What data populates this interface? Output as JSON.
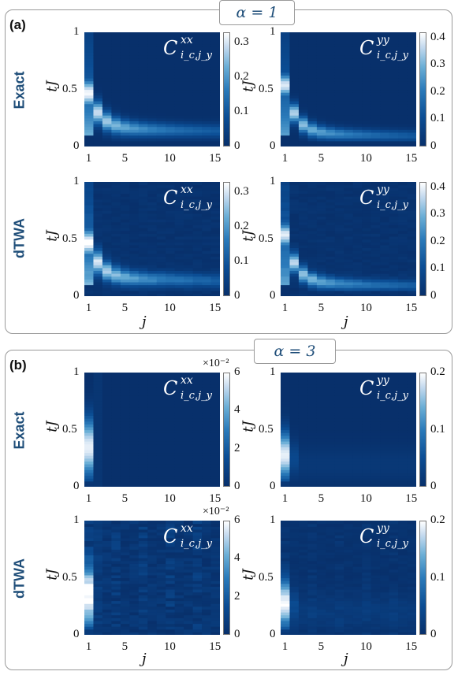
{
  "panels": [
    {
      "letter": "(a)",
      "alpha": "α = 1",
      "rows": [
        "Exact",
        "dTWA"
      ]
    },
    {
      "letter": "(b)",
      "alpha": "α = 3",
      "rows": [
        "Exact",
        "dTWA"
      ]
    }
  ],
  "axes": {
    "ylabel": "tJ",
    "xlabel": "j",
    "yticks": [
      "0",
      "0.5",
      "1"
    ],
    "xticks": [
      "1",
      "5",
      "10",
      "15"
    ]
  },
  "labels": {
    "xx_sup": "xx",
    "yy_sup": "yy",
    "sub": "i_c,j_y",
    "C": "C"
  },
  "colorbars": {
    "a_xx": {
      "ticks": [
        "0",
        "0.1",
        "0.2",
        "0.3"
      ]
    },
    "a_yy": {
      "ticks": [
        "0",
        "0.1",
        "0.2",
        "0.3",
        "0.4"
      ]
    },
    "b_xx": {
      "ticks": [
        "0",
        "2",
        "4",
        "6"
      ],
      "exponent": "×10⁻²"
    },
    "b_yy": {
      "ticks": [
        "0",
        "0.1",
        "0.2"
      ]
    }
  },
  "colors": {
    "low": "#08306b",
    "high": "#ffffff",
    "accent": "#1f4e79"
  },
  "chart_data": [
    {
      "type": "heatmap",
      "panel": "a",
      "method": "Exact",
      "quantity": "C^xx",
      "x_range": [
        1,
        15
      ],
      "y_range": [
        0,
        1
      ],
      "clim": [
        0,
        0.33
      ]
    },
    {
      "type": "heatmap",
      "panel": "a",
      "method": "Exact",
      "quantity": "C^yy",
      "x_range": [
        1,
        15
      ],
      "y_range": [
        0,
        1
      ],
      "clim": [
        0,
        0.42
      ]
    },
    {
      "type": "heatmap",
      "panel": "a",
      "method": "dTWA",
      "quantity": "C^xx",
      "x_range": [
        1,
        15
      ],
      "y_range": [
        0,
        1
      ],
      "clim": [
        0,
        0.33
      ]
    },
    {
      "type": "heatmap",
      "panel": "a",
      "method": "dTWA",
      "quantity": "C^yy",
      "x_range": [
        1,
        15
      ],
      "y_range": [
        0,
        1
      ],
      "clim": [
        0,
        0.42
      ]
    },
    {
      "type": "heatmap",
      "panel": "b",
      "method": "Exact",
      "quantity": "C^xx",
      "x_range": [
        1,
        15
      ],
      "y_range": [
        0,
        1
      ],
      "clim": [
        0,
        0.06
      ]
    },
    {
      "type": "heatmap",
      "panel": "b",
      "method": "Exact",
      "quantity": "C^yy",
      "x_range": [
        1,
        15
      ],
      "y_range": [
        0,
        1
      ],
      "clim": [
        0,
        0.2
      ]
    },
    {
      "type": "heatmap",
      "panel": "b",
      "method": "dTWA",
      "quantity": "C^xx",
      "x_range": [
        1,
        15
      ],
      "y_range": [
        0,
        1
      ],
      "clim": [
        0,
        0.06
      ]
    },
    {
      "type": "heatmap",
      "panel": "b",
      "method": "dTWA",
      "quantity": "C^yy",
      "x_range": [
        1,
        15
      ],
      "y_range": [
        0,
        1
      ],
      "clim": [
        0,
        0.2
      ]
    }
  ]
}
